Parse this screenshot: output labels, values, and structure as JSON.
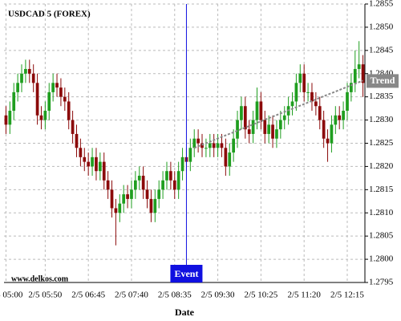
{
  "chart_data": {
    "type": "candlestick",
    "title": "USDCAD 5 (FOREX)",
    "watermark": "www.delkos.com",
    "x_label": "Date",
    "up_color": "#1f9e1f",
    "down_color": "#8b0a0a",
    "grid": true,
    "categories": [
      "2/5 05:00",
      null,
      null,
      null,
      null,
      null,
      null,
      null,
      null,
      null,
      "2/5 05:50",
      null,
      null,
      null,
      null,
      null,
      null,
      null,
      null,
      null,
      null,
      "2/5 06:45",
      null,
      null,
      null,
      null,
      null,
      null,
      null,
      null,
      null,
      null,
      "2/5 07:40",
      null,
      null,
      null,
      null,
      null,
      null,
      null,
      null,
      null,
      null,
      "2/5 08:35",
      null,
      null,
      null,
      null,
      null,
      null,
      null,
      null,
      null,
      null,
      "2/5 09:30",
      null,
      null,
      null,
      null,
      null,
      null,
      null,
      null,
      null,
      null,
      "2/5 10:25",
      null,
      null,
      null,
      null,
      null,
      null,
      null,
      null,
      null,
      null,
      "2/5 11:20",
      null,
      null,
      null,
      null,
      null,
      null,
      null,
      null,
      null,
      null,
      "2/5 12:15",
      null,
      null,
      null,
      null
    ],
    "open": [
      1.2831,
      1.2829,
      1.2832,
      1.2836,
      1.2838,
      1.284,
      1.2841,
      1.284,
      1.2838,
      1.2831,
      1.283,
      1.2832,
      1.2836,
      1.2838,
      1.2837,
      1.2835,
      1.2834,
      1.283,
      1.2827,
      1.2824,
      1.2822,
      1.2821,
      1.282,
      1.2822,
      1.2819,
      1.2821,
      1.2817,
      1.2815,
      1.2811,
      1.281,
      1.2812,
      1.2814,
      1.2813,
      1.2815,
      1.2817,
      1.2818,
      1.2815,
      1.2813,
      1.281,
      1.2813,
      1.2815,
      1.2817,
      1.2819,
      1.2817,
      1.2815,
      1.2819,
      1.2822,
      1.2821,
      1.2824,
      1.2826,
      1.2825,
      1.2824,
      1.2824,
      1.2825,
      1.2824,
      1.2825,
      1.2824,
      1.282,
      1.2823,
      1.2826,
      1.283,
      1.2833,
      1.2828,
      1.2827,
      1.283,
      1.2834,
      1.283,
      1.2827,
      1.2829,
      1.2826,
      1.2828,
      1.283,
      1.2831,
      1.2833,
      1.2834,
      1.2838,
      1.284,
      1.2836,
      1.2836,
      1.2834,
      1.2833,
      1.283,
      1.2826,
      1.2825,
      1.2829,
      1.2831,
      1.283,
      1.2832,
      1.2836,
      1.2838,
      1.2841,
      1.2842
    ],
    "high": [
      1.2833,
      1.2834,
      1.2838,
      1.284,
      1.2842,
      1.2843,
      1.2843,
      1.2842,
      1.284,
      1.2833,
      1.2834,
      1.2838,
      1.284,
      1.284,
      1.2839,
      1.2837,
      1.2836,
      1.2832,
      1.2829,
      1.2826,
      1.2824,
      1.2823,
      1.2824,
      1.2824,
      1.2823,
      1.2823,
      1.2819,
      1.2817,
      1.2813,
      1.2814,
      1.2816,
      1.2816,
      1.2817,
      1.2819,
      1.282,
      1.282,
      1.2817,
      1.2815,
      1.2815,
      1.2817,
      1.2819,
      1.2821,
      1.2821,
      1.2819,
      1.2821,
      1.2824,
      1.2824,
      1.2826,
      1.2828,
      1.2828,
      1.2827,
      1.2826,
      1.2827,
      1.2827,
      1.2827,
      1.2827,
      1.2826,
      1.2825,
      1.2828,
      1.2832,
      1.2835,
      1.2835,
      1.283,
      1.2832,
      1.2837,
      1.2836,
      1.2832,
      1.2831,
      1.2831,
      1.283,
      1.2832,
      1.2833,
      1.2835,
      1.2836,
      1.284,
      1.2842,
      1.2842,
      1.2838,
      1.2838,
      1.2836,
      1.2835,
      1.2832,
      1.2828,
      1.2831,
      1.2833,
      1.2833,
      1.2834,
      1.2838,
      1.284,
      1.2845,
      1.2847,
      1.2844
    ],
    "low": [
      1.2827,
      1.2827,
      1.283,
      1.2834,
      1.2836,
      1.2838,
      1.2838,
      1.2836,
      1.2829,
      1.2828,
      1.2828,
      1.283,
      1.2834,
      1.2835,
      1.2833,
      1.2832,
      1.2828,
      1.2825,
      1.2822,
      1.282,
      1.2819,
      1.2818,
      1.2818,
      1.2817,
      1.2817,
      1.2815,
      1.2813,
      1.2809,
      1.2803,
      1.2808,
      1.281,
      1.2811,
      1.2811,
      1.2813,
      1.2815,
      1.2813,
      1.2811,
      1.2808,
      1.2808,
      1.2811,
      1.2813,
      1.2815,
      1.2815,
      1.2813,
      1.2813,
      1.2817,
      1.2819,
      1.2819,
      1.2822,
      1.2823,
      1.2822,
      1.2822,
      1.2822,
      1.2822,
      1.2822,
      1.2822,
      1.2818,
      1.2818,
      1.2821,
      1.2824,
      1.2828,
      1.2826,
      1.2825,
      1.2825,
      1.2828,
      1.2828,
      1.2825,
      1.2825,
      1.2824,
      1.2824,
      1.2826,
      1.2828,
      1.2829,
      1.2831,
      1.2832,
      1.2836,
      1.2834,
      1.2834,
      1.2832,
      1.2831,
      1.2828,
      1.2824,
      1.2821,
      1.2823,
      1.2827,
      1.2828,
      1.2828,
      1.283,
      1.2834,
      1.2836,
      1.2839,
      1.2835
    ],
    "close": [
      1.2829,
      1.2832,
      1.2836,
      1.2838,
      1.284,
      1.2841,
      1.284,
      1.2838,
      1.2831,
      1.283,
      1.2832,
      1.2836,
      1.2838,
      1.2837,
      1.2835,
      1.2834,
      1.283,
      1.2827,
      1.2824,
      1.2822,
      1.2821,
      1.282,
      1.2822,
      1.2819,
      1.2821,
      1.2817,
      1.2815,
      1.2811,
      1.281,
      1.2812,
      1.2814,
      1.2813,
      1.2815,
      1.2817,
      1.2818,
      1.2815,
      1.2813,
      1.281,
      1.2813,
      1.2815,
      1.2817,
      1.2819,
      1.2817,
      1.2815,
      1.2819,
      1.2822,
      1.2821,
      1.2824,
      1.2826,
      1.2825,
      1.2824,
      1.2824,
      1.2825,
      1.2824,
      1.2825,
      1.2824,
      1.282,
      1.2823,
      1.2826,
      1.283,
      1.2833,
      1.2828,
      1.2827,
      1.283,
      1.2834,
      1.283,
      1.2827,
      1.2829,
      1.2826,
      1.2828,
      1.283,
      1.2831,
      1.2833,
      1.2834,
      1.2838,
      1.284,
      1.2836,
      1.2836,
      1.2834,
      1.2833,
      1.283,
      1.2826,
      1.2825,
      1.2829,
      1.2831,
      1.283,
      1.2832,
      1.2836,
      1.2838,
      1.2841,
      1.2842,
      1.2838
    ],
    "ylim": [
      1.2795,
      1.2855
    ],
    "yticks": [
      1.2795,
      {
        "value": 1.28,
        "label": "1.2800"
      },
      1.2805,
      {
        "value": 1.281,
        "label": "1.2810"
      },
      1.2815,
      {
        "value": 1.282,
        "label": "1.2820"
      },
      1.2825,
      {
        "value": 1.283,
        "label": "1.2830"
      },
      1.2835,
      {
        "value": 1.284,
        "label": "1.2840"
      },
      1.2845,
      {
        "value": 1.285,
        "label": "1.2850"
      },
      1.2855
    ],
    "event": {
      "label": "Event",
      "category_index": 46,
      "color": "#1010e0"
    },
    "trend": {
      "label": "Trend",
      "start_index": 48,
      "end_index": 91,
      "values": [
        1.2824,
        1.28385
      ],
      "color": "#888888"
    }
  }
}
